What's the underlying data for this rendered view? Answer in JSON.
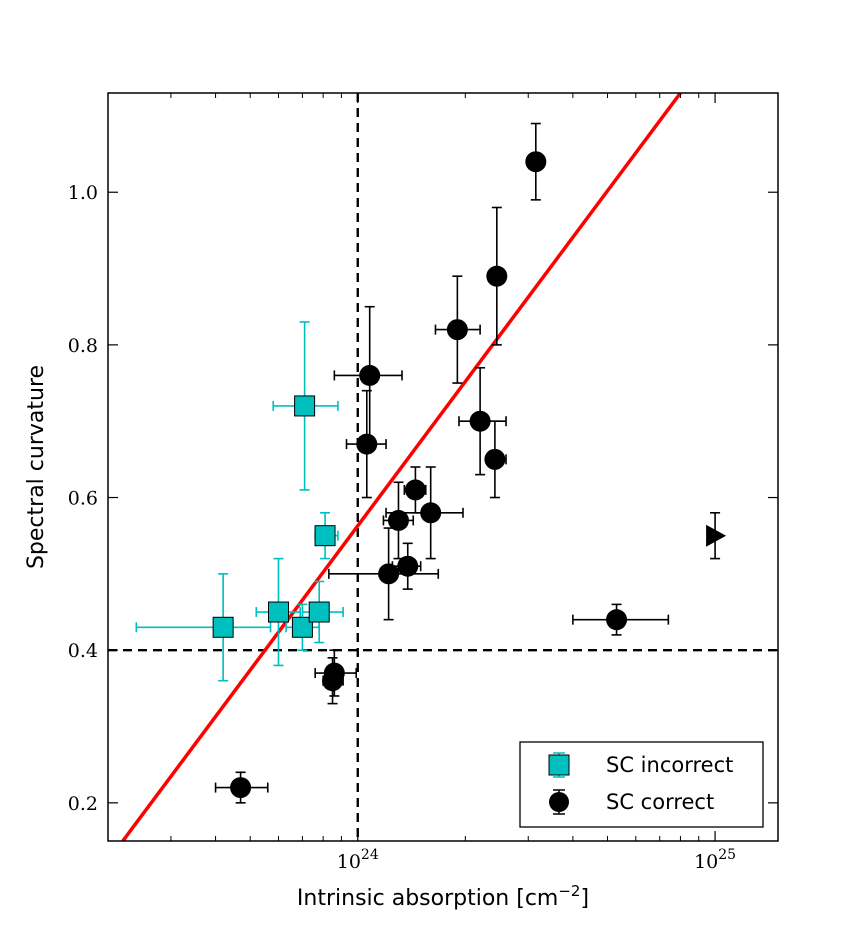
{
  "chart_data": {
    "type": "scatter",
    "title": "",
    "xlabel": "Intrinsic absorption [cm",
    "xlabel_sup": "−2",
    "xlabel_end": "]",
    "ylabel": "Spectral curvature",
    "xscale": "log",
    "xlim": [
      2e+23,
      1.5e+25
    ],
    "ylim": [
      0.15,
      1.13
    ],
    "x_ticks": [
      {
        "value": 1e+24,
        "base": "10",
        "exp": "24"
      },
      {
        "value": 1e+25,
        "base": "10",
        "exp": "25"
      }
    ],
    "y_ticks": [
      {
        "value": 0.2,
        "label": "0.2"
      },
      {
        "value": 0.4,
        "label": "0.4"
      },
      {
        "value": 0.6,
        "label": "0.6"
      },
      {
        "value": 0.8,
        "label": "0.8"
      },
      {
        "value": 1.0,
        "label": "1.0"
      }
    ],
    "reference_lines": {
      "vertical_x": 1e+24,
      "horizontal_y": 0.4,
      "style": "dashed",
      "color": "#000000"
    },
    "fit_line": {
      "color": "#ff0000",
      "points": [
        [
          2.2e+23,
          0.15
        ],
        [
          8e+24,
          1.13
        ]
      ]
    },
    "legend": {
      "position": "bottom-right",
      "entries": [
        {
          "label": "SC incorrect",
          "marker": "square",
          "color": "#00bfbf"
        },
        {
          "label": "SC correct",
          "marker": "circle",
          "color": "#000000"
        }
      ]
    },
    "series": [
      {
        "name": "SC incorrect",
        "marker": "square",
        "color": "#00bfbf",
        "errcolor": "#00bfbf",
        "points": [
          {
            "x": 7.1e+23,
            "y": 0.72,
            "xlo": 5.8e+23,
            "xhi": 8.8e+23,
            "ylo": 0.61,
            "yhi": 0.83
          },
          {
            "x": 8.1e+23,
            "y": 0.55,
            "xlo": 7.6e+23,
            "xhi": 8.8e+23,
            "ylo": 0.52,
            "yhi": 0.58
          },
          {
            "x": 4.2e+23,
            "y": 0.43,
            "xlo": 2.4e+23,
            "xhi": 5.7e+23,
            "ylo": 0.36,
            "yhi": 0.5
          },
          {
            "x": 6e+23,
            "y": 0.45,
            "xlo": 5.2e+23,
            "xhi": 6.9e+23,
            "ylo": 0.38,
            "yhi": 0.52
          },
          {
            "x": 7e+23,
            "y": 0.43,
            "xlo": 6.3e+23,
            "xhi": 7.8e+23,
            "ylo": 0.4,
            "yhi": 0.46
          },
          {
            "x": 7.8e+23,
            "y": 0.45,
            "xlo": 7e+23,
            "xhi": 9.1e+23,
            "ylo": 0.41,
            "yhi": 0.49
          }
        ]
      },
      {
        "name": "SC correct",
        "marker": "circle",
        "color": "#000000",
        "errcolor": "#000000",
        "points": [
          {
            "x": 3.15e+24,
            "y": 1.04,
            "xlo": 3.15e+24,
            "xhi": 3.15e+24,
            "ylo": 0.99,
            "yhi": 1.09
          },
          {
            "x": 2.45e+24,
            "y": 0.89,
            "xlo": 2.4e+24,
            "xhi": 2.5e+24,
            "ylo": 0.8,
            "yhi": 0.98
          },
          {
            "x": 1.9e+24,
            "y": 0.82,
            "xlo": 1.65e+24,
            "xhi": 2.2e+24,
            "ylo": 0.75,
            "yhi": 0.89
          },
          {
            "x": 1.08e+24,
            "y": 0.76,
            "xlo": 8.6e+23,
            "xhi": 1.33e+24,
            "ylo": 0.67,
            "yhi": 0.85
          },
          {
            "x": 2.2e+24,
            "y": 0.7,
            "xlo": 1.92e+24,
            "xhi": 2.6e+24,
            "ylo": 0.63,
            "yhi": 0.77
          },
          {
            "x": 1.06e+24,
            "y": 0.67,
            "xlo": 9.3e+23,
            "xhi": 1.2e+24,
            "ylo": 0.6,
            "yhi": 0.74
          },
          {
            "x": 2.42e+24,
            "y": 0.65,
            "xlo": 2.32e+24,
            "xhi": 2.6e+24,
            "ylo": 0.6,
            "yhi": 0.7
          },
          {
            "x": 1.45e+24,
            "y": 0.61,
            "xlo": 1.35e+24,
            "xhi": 1.55e+24,
            "ylo": 0.58,
            "yhi": 0.64
          },
          {
            "x": 1.6e+24,
            "y": 0.58,
            "xlo": 1.2e+24,
            "xhi": 1.97e+24,
            "ylo": 0.52,
            "yhi": 0.64
          },
          {
            "x": 1.3e+24,
            "y": 0.57,
            "xlo": 1.18e+24,
            "xhi": 1.43e+24,
            "ylo": 0.52,
            "yhi": 0.62
          },
          {
            "x": 1.38e+24,
            "y": 0.51,
            "xlo": 1.25e+24,
            "xhi": 1.5e+24,
            "ylo": 0.48,
            "yhi": 0.54
          },
          {
            "x": 1.22e+24,
            "y": 0.5,
            "xlo": 8.3e+23,
            "xhi": 1.68e+24,
            "ylo": 0.44,
            "yhi": 0.56
          },
          {
            "x": 5.3e+24,
            "y": 0.44,
            "xlo": 4e+24,
            "xhi": 7.4e+24,
            "ylo": 0.42,
            "yhi": 0.46
          },
          {
            "x": 8.6e+23,
            "y": 0.37,
            "xlo": 7.6e+23,
            "xhi": 9.9e+23,
            "ylo": 0.34,
            "yhi": 0.4
          },
          {
            "x": 8.5e+23,
            "y": 0.36,
            "xlo": 8e+23,
            "xhi": 9.1e+23,
            "ylo": 0.33,
            "yhi": 0.39
          },
          {
            "x": 4.7e+23,
            "y": 0.22,
            "xlo": 4e+23,
            "xhi": 5.6e+23,
            "ylo": 0.2,
            "yhi": 0.24
          }
        ]
      }
    ],
    "lower_limits": [
      {
        "x": 1e+25,
        "y": 0.55,
        "ylo": 0.52,
        "yhi": 0.58,
        "marker": "triangle-right",
        "color": "#000000"
      }
    ]
  }
}
